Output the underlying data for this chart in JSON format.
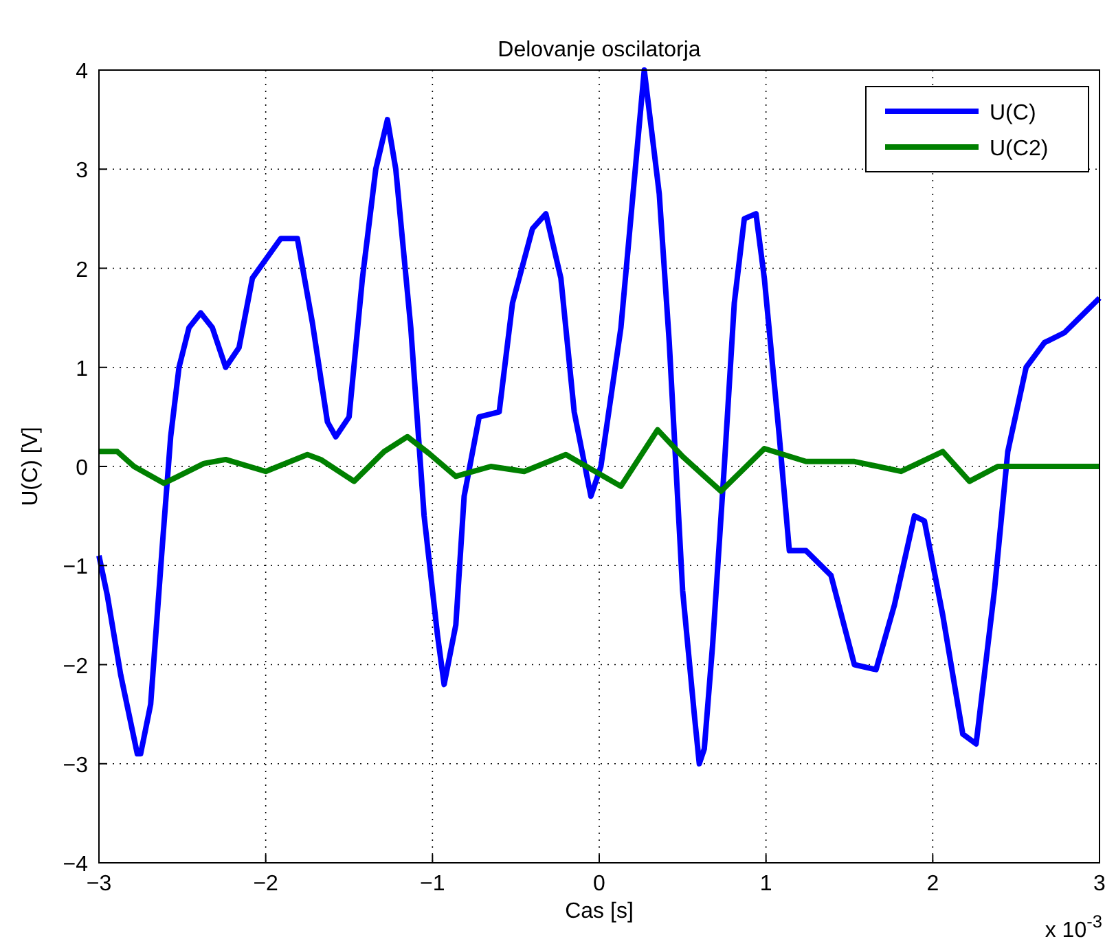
{
  "chart_data": {
    "type": "line",
    "title": "Delovanje oscilatorja",
    "xlabel": "Cas [s]",
    "ylabel": "U(C) [V]",
    "annotations": [
      "x 10$^{-3}$"
    ],
    "xlim": [
      -3,
      3
    ],
    "xticks": [
      {
        "value": -3,
        "label": "−3"
      },
      {
        "value": -2,
        "label": "−2"
      },
      {
        "value": -1,
        "label": "−1"
      },
      0,
      1,
      2,
      3
    ],
    "ylim": [
      -4,
      4
    ],
    "yticks": [
      {
        "value": -4,
        "label": "−4"
      },
      {
        "value": -3,
        "label": "−3"
      },
      {
        "value": -2,
        "label": "−2"
      },
      {
        "value": -1,
        "label": "−1"
      },
      0,
      1,
      2,
      3,
      4
    ],
    "grid": true,
    "legend": "top right",
    "line_style": "solid",
    "series": [
      {
        "name": "U(C)",
        "color": "#0000ff",
        "x": [
          -3,
          -2.95,
          -2.87,
          -2.77,
          -2.75,
          -2.69,
          -2.62,
          -2.57,
          -2.52,
          -2.46,
          -2.39,
          -2.32,
          -2.24,
          -2.16,
          -2.08,
          -1.91,
          -1.81,
          -1.72,
          -1.63,
          -1.58,
          -1.5,
          -1.42,
          -1.34,
          -1.27,
          -1.22,
          -1.13,
          -1.05,
          -0.97,
          -0.93,
          -0.86,
          -0.81,
          -0.72,
          -0.6,
          -0.52,
          -0.4,
          -0.32,
          -0.23,
          -0.15,
          -0.05,
          0.01,
          0.13,
          0.27,
          0.36,
          0.42,
          0.46,
          0.5,
          0.57,
          0.6,
          0.63,
          0.68,
          0.75,
          0.81,
          0.87,
          0.94,
          0.99,
          1.08,
          1.14,
          1.24,
          1.39,
          1.53,
          1.66,
          1.77,
          1.89,
          1.95,
          2.06,
          2.18,
          2.26,
          2.37,
          2.45,
          2.56,
          2.67,
          2.79,
          2.88,
          3
        ],
        "values": [
          -0.9,
          -1.3,
          -2.1,
          -2.9,
          -2.9,
          -2.4,
          -0.8,
          0.3,
          1.0,
          1.4,
          1.55,
          1.4,
          1.0,
          1.2,
          1.9,
          2.3,
          2.3,
          1.45,
          0.45,
          0.3,
          0.5,
          1.9,
          3.0,
          3.5,
          3.0,
          1.4,
          -0.5,
          -1.7,
          -2.2,
          -1.6,
          -0.3,
          0.5,
          0.55,
          1.65,
          2.4,
          2.55,
          1.9,
          0.55,
          -0.3,
          0,
          1.4,
          4.0,
          2.75,
          1.25,
          0,
          -1.25,
          -2.5,
          -3.0,
          -2.85,
          -1.8,
          0,
          1.65,
          2.5,
          2.55,
          1.9,
          0.3,
          -0.85,
          -0.85,
          -1.1,
          -2.0,
          -2.05,
          -1.4,
          -0.5,
          -0.55,
          -1.5,
          -2.7,
          -2.8,
          -1.25,
          0.15,
          1.0,
          1.25,
          1.35,
          1.5,
          1.7
        ]
      },
      {
        "name": "U(C2)",
        "color": "#008000",
        "x": [
          -3,
          -2.89,
          -2.79,
          -2.61,
          -2.37,
          -2.24,
          -2.0,
          -1.75,
          -1.67,
          -1.47,
          -1.29,
          -1.15,
          -1.02,
          -0.86,
          -0.65,
          -0.45,
          -0.2,
          0.13,
          0.35,
          0.5,
          0.73,
          0.99,
          1.24,
          1.53,
          1.81,
          2.06,
          2.22,
          2.39,
          3
        ],
        "values": [
          0.15,
          0.15,
          0,
          -0.17,
          0.03,
          0.07,
          -0.05,
          0.12,
          0.07,
          -0.15,
          0.15,
          0.3,
          0.13,
          -0.1,
          0,
          -0.05,
          0.12,
          -0.2,
          0.37,
          0.1,
          -0.25,
          0.18,
          0.05,
          0.05,
          -0.05,
          0.15,
          -0.15,
          0,
          0
        ]
      }
    ]
  }
}
